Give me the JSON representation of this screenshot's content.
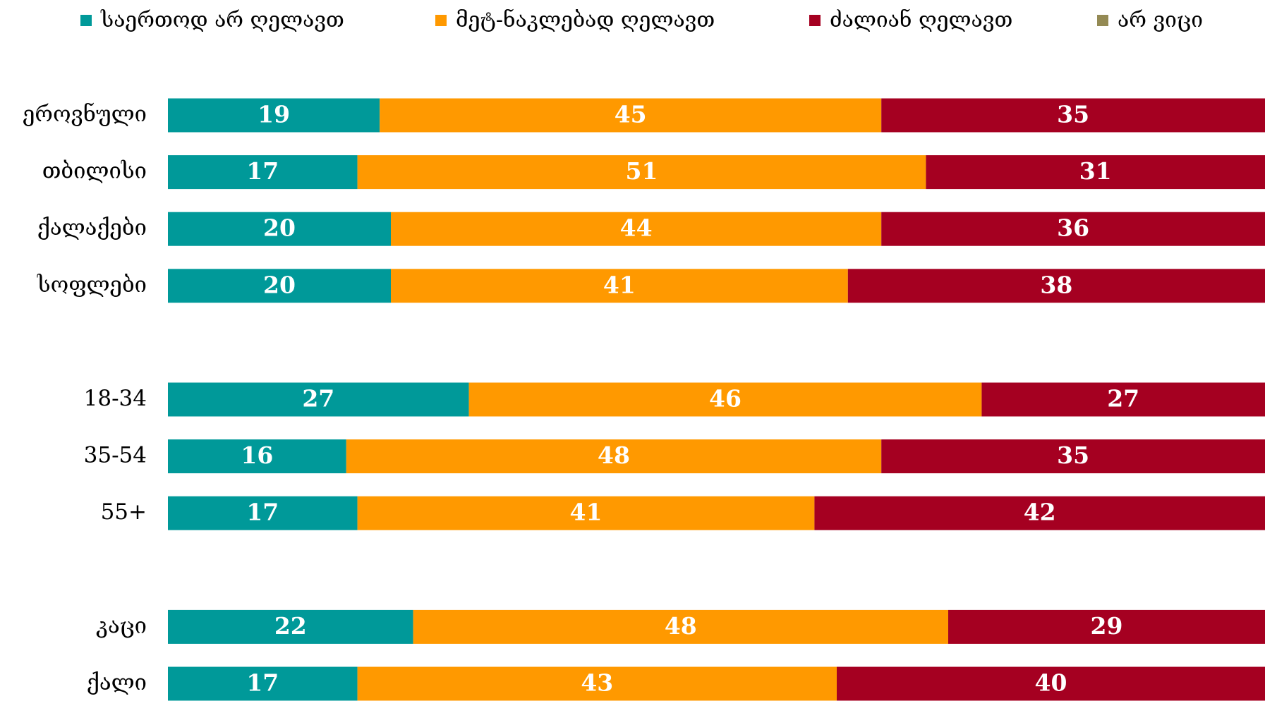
{
  "chart_data": {
    "type": "stacked-bar-horizontal",
    "categories": [
      "ეროვნული",
      "თბილისი",
      "ქალაქები",
      "სოფლები",
      null,
      "18-34",
      "35-54",
      "55+",
      null,
      "კაცი",
      "ქალი"
    ],
    "series": [
      {
        "name": "საერთოდ არ ღელავთ",
        "color": "#009999",
        "values": [
          19,
          17,
          20,
          20,
          null,
          27,
          16,
          17,
          null,
          22,
          17
        ]
      },
      {
        "name": "მეტ-ნაკლებად ღელავთ",
        "color": "#FF9900",
        "values": [
          45,
          51,
          44,
          41,
          null,
          46,
          48,
          41,
          null,
          48,
          43
        ]
      },
      {
        "name": "ძალიან ღელავთ",
        "color": "#A50021",
        "values": [
          35,
          31,
          36,
          38,
          null,
          27,
          35,
          42,
          null,
          29,
          40
        ]
      },
      {
        "name": "არ ვიცი",
        "color": "#948A54",
        "values": [
          1,
          1,
          0,
          1,
          null,
          0,
          1,
          0,
          null,
          1,
          0
        ]
      }
    ],
    "xlim": [
      0,
      100
    ],
    "value_labels_shown": [
      true,
      true,
      true,
      false
    ]
  }
}
